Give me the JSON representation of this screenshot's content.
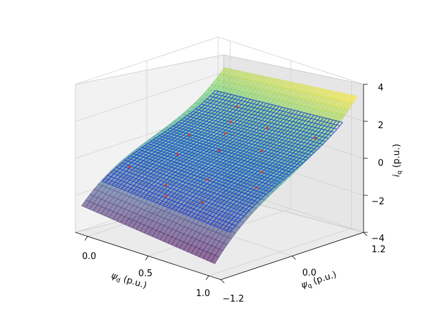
{
  "chart_data": {
    "type": "surface",
    "xlabel_main": "ψ",
    "xlabel_sub": "d",
    "xlabel_unit": " (p.u.)",
    "ylabel_main": "ψ",
    "ylabel_sub": "q",
    "ylabel_unit": " (p.u.)",
    "zlabel_main": "i",
    "zlabel_sub": "q",
    "zlabel_unit": " (p.u.)",
    "x_ticks": [
      "0.0",
      "0.5",
      "1.0"
    ],
    "y_ticks": [
      "−1.2",
      "0.0",
      "1.2"
    ],
    "z_ticks": [
      "−4",
      "−2",
      "0",
      "2",
      "4"
    ],
    "xlim": [
      -0.1,
      1.1
    ],
    "ylim": [
      -1.2,
      1.2
    ],
    "zlim": [
      -4,
      4
    ],
    "surface_colormap": "viridis",
    "overlay_mesh_color": "#1a3fd0",
    "scatter_color": "#d9352a",
    "scatter_points": [
      {
        "x": 0.05,
        "y": -0.6,
        "z": -0.8
      },
      {
        "x": 0.15,
        "y": 0.2,
        "z": 0.3
      },
      {
        "x": 0.25,
        "y": -0.2,
        "z": -0.1
      },
      {
        "x": 0.3,
        "y": 0.6,
        "z": 0.9
      },
      {
        "x": 0.4,
        "y": -0.7,
        "z": -0.9
      },
      {
        "x": 0.45,
        "y": 0.1,
        "z": 0.2
      },
      {
        "x": 0.55,
        "y": 0.7,
        "z": 1.0
      },
      {
        "x": 0.6,
        "y": -0.4,
        "z": -0.5
      },
      {
        "x": 0.7,
        "y": 0.3,
        "z": 0.5
      },
      {
        "x": 0.75,
        "y": -0.8,
        "z": -1.0
      },
      {
        "x": 0.85,
        "y": 0.0,
        "z": 0.0
      },
      {
        "x": 0.9,
        "y": 0.8,
        "z": 1.1
      },
      {
        "x": 0.2,
        "y": 0.9,
        "z": 1.2
      },
      {
        "x": 0.95,
        "y": -0.3,
        "z": -0.3
      },
      {
        "x": 0.5,
        "y": -0.9,
        "z": -1.1
      },
      {
        "x": 0.35,
        "y": 0.4,
        "z": 0.6
      }
    ]
  }
}
